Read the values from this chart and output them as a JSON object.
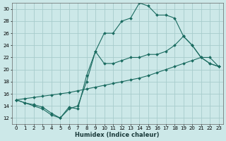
{
  "xlabel": "Humidex (Indice chaleur)",
  "bg_color": "#cce8e8",
  "grid_color": "#a8cccc",
  "line_color": "#1a6b60",
  "xlim": [
    -0.5,
    23.5
  ],
  "ylim": [
    11,
    31
  ],
  "xticks": [
    0,
    1,
    2,
    3,
    4,
    5,
    6,
    7,
    8,
    9,
    10,
    11,
    12,
    13,
    14,
    15,
    16,
    17,
    18,
    19,
    20,
    21,
    22,
    23
  ],
  "yticks": [
    12,
    14,
    16,
    18,
    20,
    22,
    24,
    26,
    28,
    30
  ],
  "curve1_x": [
    0,
    1,
    2,
    3,
    4,
    5,
    6,
    7,
    8,
    9,
    10,
    11,
    12,
    13,
    14,
    15,
    16,
    17,
    18,
    19,
    20,
    21,
    22,
    23
  ],
  "curve1_y": [
    15,
    14.5,
    14,
    13.5,
    12.5,
    12,
    13.5,
    14,
    18,
    23,
    26,
    26,
    28,
    28.5,
    31,
    30.5,
    29,
    29,
    28.5,
    25.5,
    24,
    22,
    21,
    20.5
  ],
  "curve2_x": [
    0,
    1,
    2,
    3,
    4,
    5,
    6,
    7,
    8,
    9,
    10,
    11,
    12,
    13,
    14,
    15,
    16,
    17,
    18,
    19,
    20,
    21,
    22,
    23
  ],
  "curve2_y": [
    15,
    15.2,
    15.4,
    15.6,
    15.8,
    16,
    16.2,
    16.5,
    16.8,
    17.1,
    17.4,
    17.7,
    18,
    18.3,
    18.6,
    19,
    19.5,
    20,
    20.5,
    21,
    21.5,
    22,
    22,
    20.5
  ],
  "curve3_x": [
    0,
    1,
    2,
    3,
    4,
    5,
    6,
    7,
    8,
    9,
    10,
    11,
    12,
    13,
    14,
    15,
    16,
    17,
    18,
    19,
    20,
    21,
    22,
    23
  ],
  "curve3_y": [
    15,
    14.5,
    14.2,
    13.8,
    12.8,
    12,
    13.8,
    13.5,
    19,
    23,
    21,
    21,
    21.5,
    22,
    22,
    22.5,
    22.5,
    23,
    24,
    25.5,
    24,
    22,
    21,
    20.5
  ]
}
